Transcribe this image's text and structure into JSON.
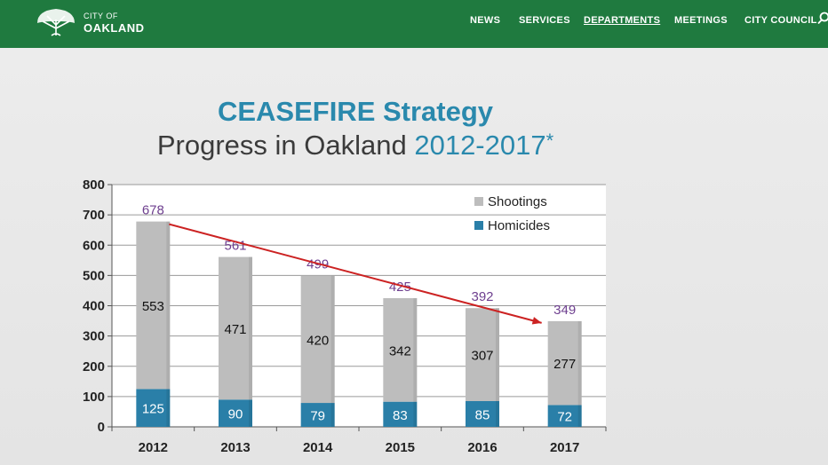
{
  "nav": {
    "logo_small": "CITY OF",
    "logo_big": "OAKLAND",
    "items": [
      "NEWS",
      "SERVICES",
      "DEPARTMENTS",
      "MEETINGS",
      "CITY COUNCIL"
    ],
    "active": "DEPARTMENTS",
    "icons": [
      "oak-tree-logo-icon",
      "search-icon"
    ],
    "color": "#1f7a3f"
  },
  "slide": {
    "title": "CEASEFIRE Strategy",
    "subtitle_text": "Progress in Oakland",
    "subtitle_years": "2012-2017",
    "subtitle_mark": "*"
  },
  "chart_data": {
    "type": "bar",
    "stacked": true,
    "categories": [
      "2012",
      "2013",
      "2014",
      "2015",
      "2016",
      "2017"
    ],
    "series": [
      {
        "name": "Homicides",
        "values": [
          125,
          90,
          79,
          83,
          85,
          72
        ],
        "color": "#2a7fa8"
      },
      {
        "name": "Shootings",
        "values": [
          553,
          471,
          420,
          342,
          307,
          277
        ],
        "color": "#bdbdbd"
      }
    ],
    "totals": [
      678,
      561,
      499,
      425,
      392,
      349
    ],
    "ylim": [
      0,
      800
    ],
    "yticks": [
      "0",
      "100",
      "200",
      "300",
      "400",
      "500",
      "600",
      "700",
      "800"
    ],
    "grid": true,
    "legend": "top-right",
    "legend_order": [
      "Shootings",
      "Homicides"
    ],
    "trend_arrow": {
      "from": "2012",
      "to": "2017",
      "color": "#cc2222"
    },
    "total_label_color": "#6e3f8f"
  }
}
